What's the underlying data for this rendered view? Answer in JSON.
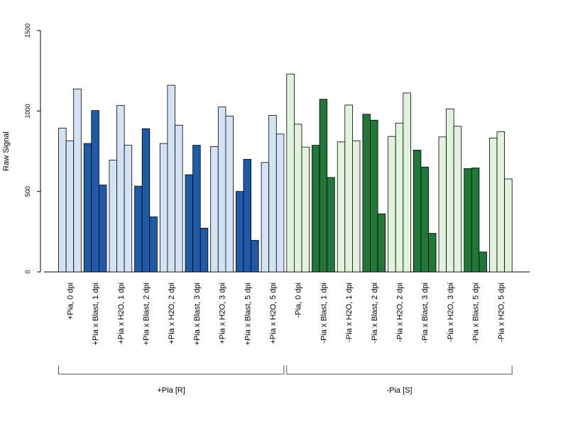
{
  "chart_data": {
    "type": "bar",
    "ylabel": "Raw Signal",
    "xlabel": "",
    "ylim": [
      0,
      1500
    ],
    "yticks": [
      0,
      500,
      1000,
      1500
    ],
    "grid": false,
    "legend": "none",
    "colors": {
      "plus_pia_light": "#d4e3f3",
      "plus_pia_dark": "#1f5aa8",
      "minus_pia_light": "#e1f3dc",
      "minus_pia_dark": "#21773a"
    },
    "categories": [
      {
        "label": "+Pia, 0 dpi",
        "values": [
          893,
          815,
          1137
        ],
        "shade": "plus_pia_light"
      },
      {
        "label": "+Pia x Blast, 1 dpi",
        "values": [
          798,
          1003,
          540
        ],
        "shade": "plus_pia_dark"
      },
      {
        "label": "+Pia x H2O, 1 dpi",
        "values": [
          695,
          1034,
          787
        ],
        "shade": "plus_pia_light"
      },
      {
        "label": "+Pia x Blast, 2 dpi",
        "values": [
          533,
          890,
          342
        ],
        "shade": "plus_pia_dark"
      },
      {
        "label": "+Pia x H2O, 2 dpi",
        "values": [
          798,
          1160,
          912
        ],
        "shade": "plus_pia_light"
      },
      {
        "label": "+Pia x Blast, 3 dpi",
        "values": [
          604,
          787,
          272
        ],
        "shade": "plus_pia_dark"
      },
      {
        "label": "+Pia x H2O, 3 dpi",
        "values": [
          779,
          1025,
          968
        ],
        "shade": "plus_pia_light"
      },
      {
        "label": "+Pia x Blast, 5 dpi",
        "values": [
          500,
          700,
          196
        ],
        "shade": "plus_pia_dark"
      },
      {
        "label": "+Pia x H2O, 5 dpi",
        "values": [
          680,
          973,
          857
        ],
        "shade": "plus_pia_light"
      },
      {
        "label": "-Pia, 0 dpi",
        "values": [
          1230,
          918,
          776
        ],
        "shade": "minus_pia_light"
      },
      {
        "label": "-Pia x Blast, 1 dpi",
        "values": [
          787,
          1073,
          587
        ],
        "shade": "minus_pia_dark"
      },
      {
        "label": "-Pia x H2O, 1 dpi",
        "values": [
          808,
          1037,
          815
        ],
        "shade": "minus_pia_light"
      },
      {
        "label": "-Pia x Blast, 2 dpi",
        "values": [
          980,
          943,
          361
        ],
        "shade": "minus_pia_dark"
      },
      {
        "label": "-Pia x H2O, 2 dpi",
        "values": [
          842,
          925,
          1112
        ],
        "shade": "minus_pia_light"
      },
      {
        "label": "-Pia x Blast, 3 dpi",
        "values": [
          757,
          652,
          240
        ],
        "shade": "minus_pia_dark"
      },
      {
        "label": "-Pia x H2O, 3 dpi",
        "values": [
          839,
          1013,
          905
        ],
        "shade": "minus_pia_light"
      },
      {
        "label": "-Pia x Blast, 5 dpi",
        "values": [
          642,
          646,
          124
        ],
        "shade": "minus_pia_dark"
      },
      {
        "label": "-Pia x H2O, 5 dpi",
        "values": [
          832,
          871,
          578
        ],
        "shade": "minus_pia_light"
      }
    ],
    "groups": [
      {
        "label": "+Pia [R]",
        "first": 0,
        "last": 8
      },
      {
        "label": "-Pia [S]",
        "first": 9,
        "last": 17
      }
    ]
  }
}
